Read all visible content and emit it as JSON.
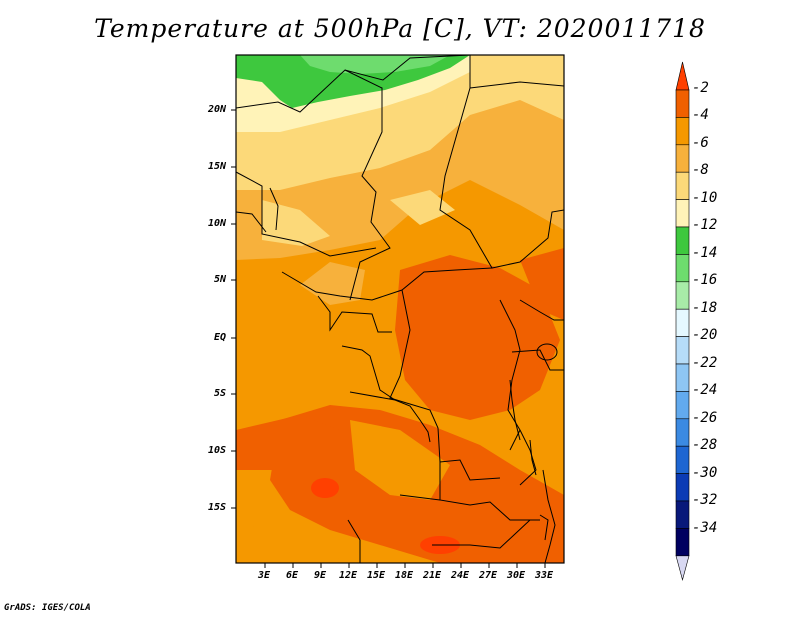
{
  "title": "Temperature at 500hPa [C], VT: 2020011718",
  "credit": "GrADS: IGES/COLA",
  "map": {
    "lat_labels": [
      "20N",
      "15N",
      "10N",
      "5N",
      "EQ",
      "5S",
      "10S",
      "15S"
    ],
    "lon_labels": [
      "3E",
      "6E",
      "9E",
      "12E",
      "15E",
      "18E",
      "21E",
      "24E",
      "27E",
      "30E",
      "33E"
    ]
  },
  "colorbar": {
    "labels": [
      "-2",
      "-4",
      "-6",
      "-8",
      "-10",
      "-12",
      "-14",
      "-16",
      "-18",
      "-20",
      "-22",
      "-24",
      "-26",
      "-28",
      "-30",
      "-32",
      "-34"
    ],
    "colors": [
      "#ff4000",
      "#f06000",
      "#f59800",
      "#f7b13c",
      "#fcd979",
      "#fff3b8",
      "#3ec83e",
      "#6edc6e",
      "#a8eca8",
      "#e5f8ff",
      "#b6dcf8",
      "#8ec6f4",
      "#62aaee",
      "#3b8ae2",
      "#1e66d2",
      "#0b3bb5",
      "#08187a",
      "#000060"
    ],
    "top_color": "#ff4000",
    "bottom_color": "#d8d8f2"
  }
}
